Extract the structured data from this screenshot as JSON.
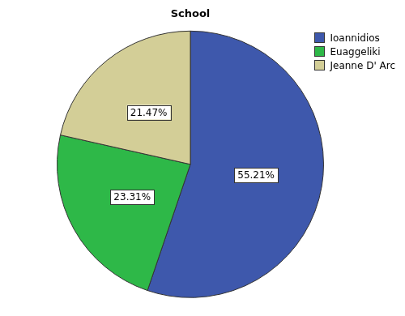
{
  "chart_data": {
    "type": "pie",
    "title": "School",
    "categories": [
      "Ioannidios",
      "Euaggeliki",
      "Jeanne D' Arc"
    ],
    "values": [
      55.21,
      23.31,
      21.47
    ],
    "value_labels": [
      "55.21%",
      "23.31%",
      "21.47%"
    ],
    "colors": [
      "#3e58ac",
      "#2eb848",
      "#d3ce97"
    ],
    "data_labels": true,
    "legend": "top-right"
  }
}
